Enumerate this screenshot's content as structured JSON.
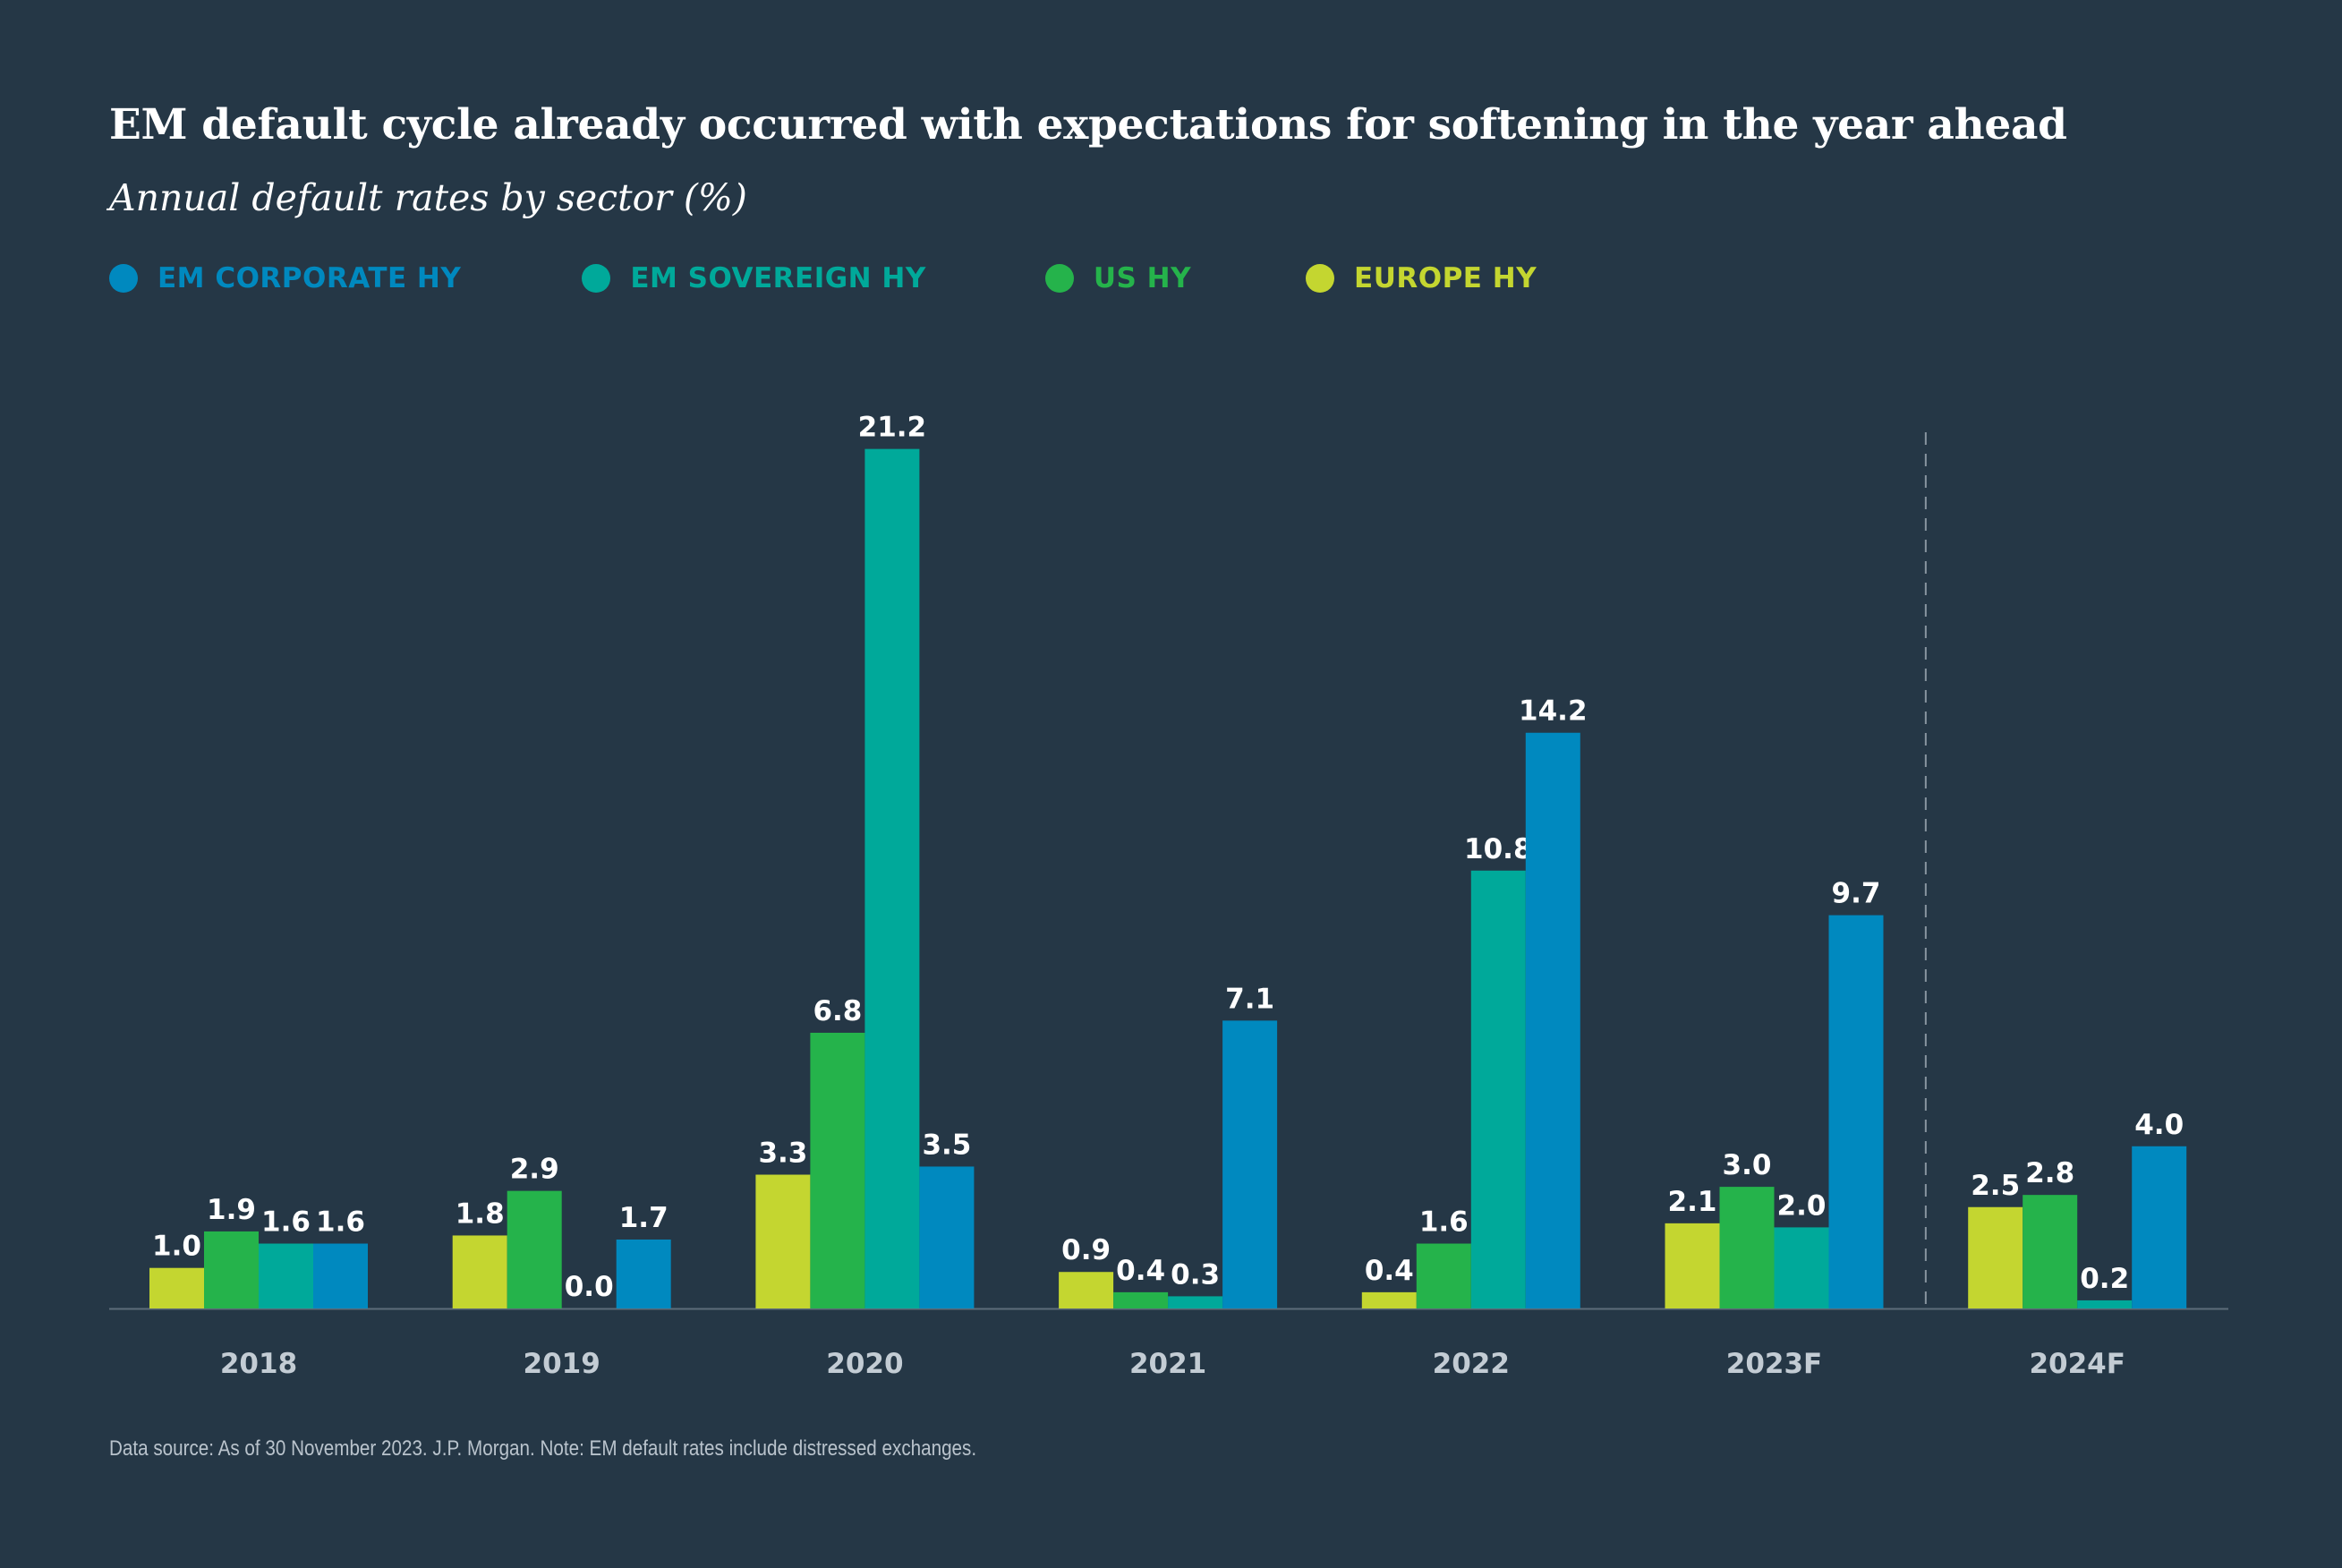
{
  "chart_data": {
    "type": "bar",
    "title": "EM default cycle already occurred with expectations for softening in the year ahead",
    "subtitle": "Annual default rates by sector (%)",
    "categories": [
      "2018",
      "2019",
      "2020",
      "2021",
      "2022",
      "2023F",
      "2024F"
    ],
    "series": [
      {
        "name": "EUROPE HY",
        "color": "#c4d630",
        "values": [
          1.0,
          1.8,
          3.3,
          0.9,
          0.4,
          2.1,
          2.5
        ]
      },
      {
        "name": "US HY",
        "color": "#25b34b",
        "values": [
          1.9,
          2.9,
          6.8,
          0.4,
          1.6,
          3.0,
          2.8
        ]
      },
      {
        "name": "EM SOVEREIGN HY",
        "color": "#00a99a",
        "values": [
          1.6,
          0.0,
          21.2,
          0.3,
          10.8,
          2.0,
          0.2
        ]
      },
      {
        "name": "EM CORPORATE HY",
        "color": "#0089bf",
        "values": [
          1.6,
          1.7,
          3.5,
          7.1,
          14.2,
          9.7,
          4.0
        ]
      }
    ],
    "legend_order": [
      "EM CORPORATE HY",
      "EM SOVEREIGN HY",
      "US HY",
      "EUROPE HY"
    ],
    "ylim": [
      0,
      22
    ],
    "xlabel": "",
    "ylabel": "",
    "grid": false,
    "forecast_divider_after": "2023F",
    "legend_position": "top-left"
  },
  "footnote": "Data source: As of 30 November 2023. J.P. Morgan. Note: EM default rates include distressed exchanges.",
  "colors": {
    "background": "#253746",
    "axis": "#5d6d7a",
    "tick_label": "#c3ccd4",
    "data_label": "#ffffff"
  }
}
